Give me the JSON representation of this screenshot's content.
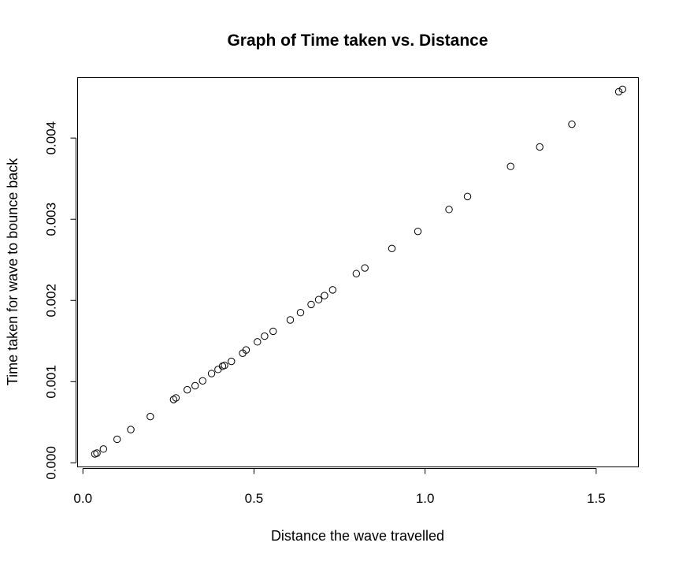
{
  "chart_data": {
    "type": "scatter",
    "title": "Graph of Time taken vs. Distance",
    "xlabel": "Distance the wave travelled",
    "ylabel": "Time taken for wave to bounce back",
    "xlim": [
      -0.0155,
      1.6235
    ],
    "ylim": [
      -4.98e-05,
      0.004744
    ],
    "x_ticks": [
      0.0,
      0.5,
      1.0,
      1.5
    ],
    "x_tick_labels": [
      "0.0",
      "0.5",
      "1.0",
      "1.5"
    ],
    "y_ticks": [
      0.0,
      0.001,
      0.002,
      0.003,
      0.004
    ],
    "y_tick_labels": [
      "0.000",
      "0.001",
      "0.002",
      "0.003",
      "0.004"
    ],
    "grid": false,
    "legend": "none",
    "marker": "open-circle",
    "colors": {
      "points": "#000000",
      "axes": "#000000",
      "background": "#ffffff"
    },
    "series": [
      {
        "x": [
          0.035,
          0.041,
          0.06,
          0.1,
          0.14,
          0.197,
          0.265,
          0.272,
          0.305,
          0.328,
          0.35,
          0.376,
          0.395,
          0.408,
          0.414,
          0.434,
          0.467,
          0.477,
          0.51,
          0.531,
          0.556,
          0.606,
          0.636,
          0.667,
          0.689,
          0.706,
          0.73,
          0.799,
          0.824,
          0.903,
          0.979,
          1.07,
          1.124,
          1.25,
          1.335,
          1.429,
          1.566,
          1.577
        ],
        "y": [
          0.00011,
          0.00012,
          0.00017,
          0.00029,
          0.00041,
          0.00057,
          0.00078,
          0.0008,
          0.0009,
          0.00095,
          0.00101,
          0.0011,
          0.00115,
          0.00119,
          0.0012,
          0.00125,
          0.00135,
          0.00139,
          0.00149,
          0.00156,
          0.00162,
          0.00176,
          0.00185,
          0.00195,
          0.00201,
          0.00206,
          0.00213,
          0.00233,
          0.0024,
          0.00264,
          0.00285,
          0.00312,
          0.00328,
          0.00365,
          0.00389,
          0.00417,
          0.00457,
          0.0046
        ]
      }
    ]
  }
}
